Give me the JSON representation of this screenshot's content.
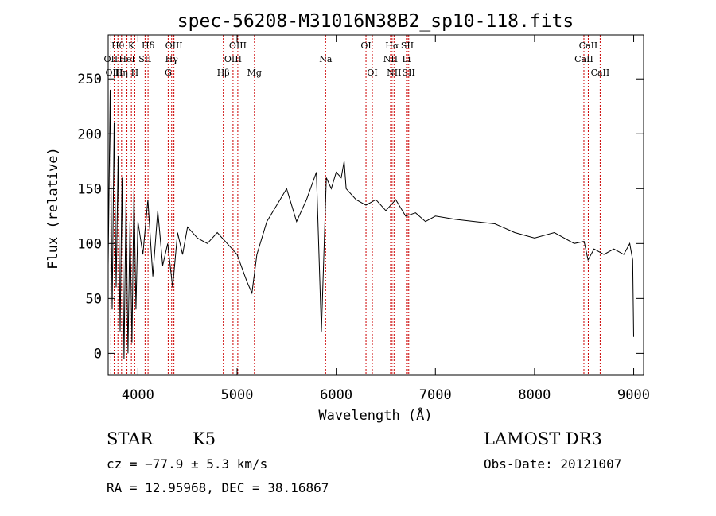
{
  "chart_data": {
    "type": "line",
    "title": "spec-56208-M31016N38B2_sp10-118.fits",
    "xlabel": "Wavelength (Å)",
    "ylabel": "Flux (relative)",
    "xlim": [
      3700,
      9100
    ],
    "ylim": [
      -20,
      290
    ],
    "x_ticks": [
      4000,
      5000,
      6000,
      7000,
      8000,
      9000
    ],
    "y_ticks": [
      0,
      50,
      100,
      150,
      200,
      250
    ],
    "line_color": "#000000",
    "marker_color": "#cc0000",
    "spectrum": {
      "x": [
        3700,
        3720,
        3740,
        3760,
        3780,
        3800,
        3820,
        3840,
        3860,
        3880,
        3900,
        3920,
        3940,
        3960,
        3980,
        4000,
        4050,
        4100,
        4150,
        4200,
        4250,
        4300,
        4350,
        4400,
        4450,
        4500,
        4600,
        4700,
        4800,
        4900,
        5000,
        5100,
        5150,
        5200,
        5300,
        5400,
        5500,
        5600,
        5700,
        5800,
        5850,
        5900,
        5950,
        6000,
        6050,
        6080,
        6100,
        6200,
        6300,
        6400,
        6500,
        6600,
        6700,
        6800,
        6900,
        7000,
        7200,
        7400,
        7600,
        7800,
        8000,
        8200,
        8400,
        8500,
        8540,
        8600,
        8700,
        8800,
        8900,
        8960,
        8990,
        9000
      ],
      "y": [
        80,
        240,
        40,
        210,
        60,
        180,
        20,
        160,
        -5,
        140,
        0,
        120,
        10,
        150,
        40,
        120,
        90,
        140,
        70,
        130,
        80,
        100,
        60,
        110,
        90,
        115,
        105,
        100,
        110,
        100,
        90,
        65,
        55,
        90,
        120,
        135,
        150,
        120,
        140,
        165,
        20,
        160,
        150,
        165,
        160,
        175,
        150,
        140,
        135,
        140,
        130,
        140,
        125,
        128,
        120,
        125,
        122,
        120,
        118,
        110,
        105,
        110,
        100,
        102,
        85,
        95,
        90,
        95,
        90,
        100,
        85,
        15
      ]
    },
    "lines": [
      {
        "label": "Hθ",
        "x": 3798,
        "row": 0
      },
      {
        "label": "K",
        "x": 3934,
        "row": 0
      },
      {
        "label": "Hδ",
        "x": 4102,
        "row": 0
      },
      {
        "label": "OIII",
        "x": 4363,
        "row": 0
      },
      {
        "label": "OIII",
        "x": 5007,
        "row": 0
      },
      {
        "label": "OI",
        "x": 6300,
        "row": 0
      },
      {
        "label": "Hα",
        "x": 6563,
        "row": 0
      },
      {
        "label": "SII",
        "x": 6717,
        "row": 0
      },
      {
        "label": "CaII",
        "x": 8542,
        "row": 0
      },
      {
        "label": "OII",
        "x": 3727,
        "row": 1
      },
      {
        "label": "HeI",
        "x": 3889,
        "row": 1
      },
      {
        "label": "SII",
        "x": 4072,
        "row": 1
      },
      {
        "label": "Hγ",
        "x": 4340,
        "row": 1
      },
      {
        "label": "OIII",
        "x": 4959,
        "row": 1
      },
      {
        "label": "Na",
        "x": 5893,
        "row": 1
      },
      {
        "label": "NII",
        "x": 6548,
        "row": 1
      },
      {
        "label": "Li",
        "x": 6708,
        "row": 1
      },
      {
        "label": "CaII",
        "x": 8498,
        "row": 1
      },
      {
        "label": "OIII",
        "x": 3760,
        "row": 2
      },
      {
        "label": "Hη",
        "x": 3835,
        "row": 2
      },
      {
        "label": "H",
        "x": 3968,
        "row": 2
      },
      {
        "label": "G",
        "x": 4305,
        "row": 2
      },
      {
        "label": "Hβ",
        "x": 4861,
        "row": 2
      },
      {
        "label": "Mg",
        "x": 5175,
        "row": 2
      },
      {
        "label": "OI",
        "x": 6364,
        "row": 2
      },
      {
        "label": "NII",
        "x": 6583,
        "row": 2
      },
      {
        "label": "SII",
        "x": 6731,
        "row": 2
      },
      {
        "label": "CaII",
        "x": 8662,
        "row": 2
      }
    ]
  },
  "info": {
    "object_class": "STAR",
    "subclass": "K5",
    "survey": "LAMOST DR3",
    "cz": "cz = −77.9 ± 5.3 km/s",
    "obs_date": "Obs-Date: 20121007",
    "coords": "RA =  12.95968, DEC =  38.16867"
  }
}
